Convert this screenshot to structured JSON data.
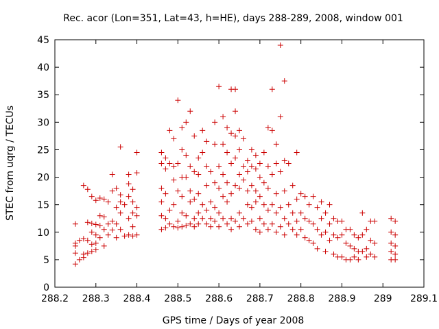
{
  "chart_data": {
    "type": "scatter",
    "title": "Rec. acor (Lon=351, Lat=43, h=HE), days 288-289, 2008, window 001",
    "xlabel": "GPS time / Days of year 2008",
    "ylabel": "STEC from uqrg / TECUs",
    "xlim": [
      288.2,
      289.1
    ],
    "ylim": [
      0,
      45
    ],
    "xticks": [
      "288.2",
      "288.3",
      "288.4",
      "288.5",
      "288.6",
      "288.7",
      "288.8",
      "288.9",
      "289",
      "289.1"
    ],
    "yticks": [
      "0",
      "5",
      "10",
      "15",
      "20",
      "25",
      "30",
      "35",
      "40",
      "45"
    ],
    "grid": false,
    "legend": "none",
    "marker": "+",
    "color": "#cc0000",
    "series": [
      {
        "points": [
          [
            288.25,
            11.5
          ],
          [
            288.25,
            8.0
          ],
          [
            288.25,
            7.5
          ],
          [
            288.25,
            6.2
          ],
          [
            288.25,
            4.2
          ],
          [
            288.26,
            8.5
          ],
          [
            288.26,
            5.0
          ],
          [
            288.27,
            8.8
          ],
          [
            288.27,
            6.0
          ],
          [
            288.27,
            5.4
          ],
          [
            288.28,
            11.8
          ],
          [
            288.28,
            8.5
          ],
          [
            288.28,
            6.2
          ],
          [
            288.29,
            11.6
          ],
          [
            288.29,
            10.0
          ],
          [
            288.29,
            7.8
          ],
          [
            288.29,
            6.5
          ],
          [
            288.3,
            11.4
          ],
          [
            288.3,
            9.5
          ],
          [
            288.3,
            8.0
          ],
          [
            288.3,
            6.8
          ],
          [
            288.31,
            13.0
          ],
          [
            288.31,
            11.2
          ],
          [
            288.31,
            9.0
          ],
          [
            288.32,
            12.8
          ],
          [
            288.32,
            10.5
          ],
          [
            288.32,
            7.5
          ],
          [
            288.33,
            11.5
          ],
          [
            288.33,
            9.5
          ],
          [
            288.34,
            12.0
          ],
          [
            288.34,
            10.4
          ],
          [
            288.35,
            14.5
          ],
          [
            288.35,
            11.5
          ],
          [
            288.35,
            9.0
          ],
          [
            288.36,
            13.5
          ],
          [
            288.36,
            10.5
          ],
          [
            288.37,
            9.3
          ],
          [
            288.38,
            12.5
          ],
          [
            288.38,
            9.5
          ],
          [
            288.39,
            13.5
          ],
          [
            288.39,
            11.0
          ],
          [
            288.39,
            9.3
          ],
          [
            288.4,
            13.0
          ],
          [
            288.4,
            9.5
          ],
          [
            288.27,
            18.5
          ],
          [
            288.28,
            17.8
          ],
          [
            288.29,
            16.5
          ],
          [
            288.3,
            15.8
          ],
          [
            288.31,
            16.2
          ],
          [
            288.32,
            16.0
          ],
          [
            288.33,
            15.5
          ],
          [
            288.34,
            17.5
          ],
          [
            288.35,
            18.0
          ],
          [
            288.36,
            16.8
          ],
          [
            288.36,
            15.5
          ],
          [
            288.37,
            15.0
          ],
          [
            288.38,
            16.5
          ],
          [
            288.38,
            18.8
          ],
          [
            288.39,
            17.8
          ],
          [
            288.39,
            15.5
          ],
          [
            288.4,
            14.5
          ],
          [
            288.36,
            25.5
          ],
          [
            288.34,
            20.5
          ],
          [
            288.38,
            20.5
          ],
          [
            288.4,
            20.8
          ],
          [
            288.4,
            24.5
          ],
          [
            288.46,
            24.5
          ],
          [
            288.46,
            22.5
          ],
          [
            288.46,
            18.0
          ],
          [
            288.46,
            15.5
          ],
          [
            288.46,
            13.0
          ],
          [
            288.46,
            10.5
          ],
          [
            288.47,
            23.5
          ],
          [
            288.47,
            21.5
          ],
          [
            288.47,
            17.0
          ],
          [
            288.47,
            12.5
          ],
          [
            288.47,
            10.8
          ],
          [
            288.48,
            28.5
          ],
          [
            288.48,
            22.5
          ],
          [
            288.48,
            14.0
          ],
          [
            288.48,
            11.5
          ],
          [
            288.49,
            27.0
          ],
          [
            288.49,
            22.0
          ],
          [
            288.49,
            19.5
          ],
          [
            288.49,
            15.0
          ],
          [
            288.49,
            11.0
          ],
          [
            288.5,
            34.0
          ],
          [
            288.5,
            22.5
          ],
          [
            288.5,
            17.5
          ],
          [
            288.5,
            12.0
          ],
          [
            288.5,
            10.8
          ],
          [
            288.51,
            29.0
          ],
          [
            288.51,
            25.0
          ],
          [
            288.51,
            20.0
          ],
          [
            288.51,
            16.5
          ],
          [
            288.51,
            13.5
          ],
          [
            288.51,
            11.0
          ],
          [
            288.52,
            30.0
          ],
          [
            288.52,
            24.0
          ],
          [
            288.52,
            20.0
          ],
          [
            288.52,
            13.0
          ],
          [
            288.52,
            11.2
          ],
          [
            288.53,
            32.0
          ],
          [
            288.53,
            22.0
          ],
          [
            288.53,
            17.5
          ],
          [
            288.53,
            15.5
          ],
          [
            288.53,
            11.5
          ],
          [
            288.54,
            27.5
          ],
          [
            288.54,
            21.0
          ],
          [
            288.54,
            16.0
          ],
          [
            288.54,
            12.5
          ],
          [
            288.54,
            11.0
          ],
          [
            288.55,
            23.5
          ],
          [
            288.55,
            20.5
          ],
          [
            288.55,
            17.0
          ],
          [
            288.55,
            13.5
          ],
          [
            288.55,
            11.5
          ],
          [
            288.56,
            28.5
          ],
          [
            288.56,
            24.5
          ],
          [
            288.56,
            15.0
          ],
          [
            288.56,
            12.5
          ],
          [
            288.57,
            26.5
          ],
          [
            288.57,
            22.0
          ],
          [
            288.57,
            18.5
          ],
          [
            288.57,
            14.0
          ],
          [
            288.57,
            11.5
          ],
          [
            288.58,
            21.0
          ],
          [
            288.58,
            15.5
          ],
          [
            288.58,
            12.5
          ],
          [
            288.58,
            11.0
          ],
          [
            288.59,
            30.0
          ],
          [
            288.59,
            26.0
          ],
          [
            288.59,
            19.0
          ],
          [
            288.59,
            14.5
          ],
          [
            288.59,
            12.0
          ],
          [
            288.6,
            36.5
          ],
          [
            288.6,
            22.0
          ],
          [
            288.6,
            18.0
          ],
          [
            288.6,
            13.5
          ],
          [
            288.6,
            11.0
          ],
          [
            288.61,
            31.0
          ],
          [
            288.61,
            26.0
          ],
          [
            288.61,
            20.5
          ],
          [
            288.61,
            16.5
          ],
          [
            288.61,
            12.5
          ],
          [
            288.62,
            29.0
          ],
          [
            288.62,
            24.5
          ],
          [
            288.62,
            19.0
          ],
          [
            288.62,
            15.5
          ],
          [
            288.62,
            11.5
          ],
          [
            288.63,
            36.0
          ],
          [
            288.63,
            28.0
          ],
          [
            288.63,
            22.5
          ],
          [
            288.63,
            17.0
          ],
          [
            288.63,
            12.5
          ],
          [
            288.63,
            10.5
          ],
          [
            288.64,
            36.0
          ],
          [
            288.64,
            32.0
          ],
          [
            288.64,
            27.5
          ],
          [
            288.64,
            23.5
          ],
          [
            288.64,
            18.5
          ],
          [
            288.64,
            12.0
          ],
          [
            288.65,
            28.5
          ],
          [
            288.65,
            25.0
          ],
          [
            288.65,
            20.5
          ],
          [
            288.65,
            18.0
          ],
          [
            288.65,
            13.5
          ],
          [
            288.65,
            11.0
          ],
          [
            288.66,
            27.0
          ],
          [
            288.66,
            22.0
          ],
          [
            288.66,
            19.5
          ],
          [
            288.66,
            12.5
          ],
          [
            288.67,
            23.0
          ],
          [
            288.67,
            21.0
          ],
          [
            288.67,
            17.5
          ],
          [
            288.67,
            15.0
          ],
          [
            288.67,
            11.5
          ],
          [
            288.68,
            25.0
          ],
          [
            288.68,
            22.0
          ],
          [
            288.68,
            18.5
          ],
          [
            288.68,
            14.5
          ],
          [
            288.68,
            12.0
          ],
          [
            288.69,
            24.0
          ],
          [
            288.69,
            21.5
          ],
          [
            288.69,
            17.5
          ],
          [
            288.69,
            15.5
          ],
          [
            288.69,
            10.5
          ],
          [
            288.7,
            22.5
          ],
          [
            288.7,
            20.0
          ],
          [
            288.7,
            16.5
          ],
          [
            288.7,
            12.5
          ],
          [
            288.7,
            10.0
          ],
          [
            288.71,
            24.5
          ],
          [
            288.71,
            19.0
          ],
          [
            288.71,
            15.0
          ],
          [
            288.71,
            11.5
          ],
          [
            288.72,
            29.0
          ],
          [
            288.72,
            22.0
          ],
          [
            288.72,
            18.0
          ],
          [
            288.72,
            14.0
          ],
          [
            288.72,
            10.5
          ],
          [
            288.73,
            36.0
          ],
          [
            288.73,
            28.5
          ],
          [
            288.73,
            20.5
          ],
          [
            288.73,
            15.0
          ],
          [
            288.73,
            11.5
          ],
          [
            288.74,
            26.0
          ],
          [
            288.74,
            22.5
          ],
          [
            288.74,
            17.0
          ],
          [
            288.74,
            13.5
          ],
          [
            288.74,
            10.0
          ],
          [
            288.75,
            44.0
          ],
          [
            288.75,
            31.0
          ],
          [
            288.75,
            21.0
          ],
          [
            288.75,
            14.5
          ],
          [
            288.75,
            11.0
          ],
          [
            288.76,
            37.5
          ],
          [
            288.76,
            23.0
          ],
          [
            288.76,
            17.5
          ],
          [
            288.76,
            12.5
          ],
          [
            288.76,
            9.5
          ],
          [
            288.77,
            22.5
          ],
          [
            288.77,
            15.0
          ],
          [
            288.77,
            11.5
          ],
          [
            288.78,
            18.5
          ],
          [
            288.78,
            13.5
          ],
          [
            288.78,
            10.5
          ],
          [
            288.79,
            24.5
          ],
          [
            288.79,
            16.0
          ],
          [
            288.79,
            12.0
          ],
          [
            288.79,
            9.5
          ],
          [
            288.8,
            17.0
          ],
          [
            288.8,
            13.5
          ],
          [
            288.8,
            10.5
          ],
          [
            288.81,
            16.5
          ],
          [
            288.81,
            12.5
          ],
          [
            288.81,
            9.0
          ],
          [
            288.82,
            15.0
          ],
          [
            288.82,
            12.0
          ],
          [
            288.82,
            8.5
          ],
          [
            288.83,
            16.5
          ],
          [
            288.83,
            11.5
          ],
          [
            288.83,
            8.0
          ],
          [
            288.84,
            14.5
          ],
          [
            288.84,
            10.5
          ],
          [
            288.84,
            7.0
          ],
          [
            288.85,
            15.5
          ],
          [
            288.85,
            12.5
          ],
          [
            288.85,
            9.5
          ],
          [
            288.86,
            13.5
          ],
          [
            288.86,
            10.0
          ],
          [
            288.86,
            6.5
          ],
          [
            288.87,
            15.0
          ],
          [
            288.87,
            11.5
          ],
          [
            288.87,
            8.5
          ],
          [
            288.88,
            12.5
          ],
          [
            288.88,
            9.5
          ],
          [
            288.88,
            6.0
          ],
          [
            288.89,
            12.0
          ],
          [
            288.89,
            9.0
          ],
          [
            288.89,
            5.5
          ],
          [
            288.9,
            12.0
          ],
          [
            288.9,
            9.5
          ],
          [
            288.9,
            5.5
          ],
          [
            288.91,
            10.5
          ],
          [
            288.91,
            8.0
          ],
          [
            288.91,
            5.0
          ],
          [
            288.92,
            10.5
          ],
          [
            288.92,
            7.5
          ],
          [
            288.92,
            5.0
          ],
          [
            288.93,
            9.5
          ],
          [
            288.93,
            7.0
          ],
          [
            288.93,
            5.5
          ],
          [
            288.94,
            9.0
          ],
          [
            288.94,
            6.5
          ],
          [
            288.94,
            5.0
          ],
          [
            288.95,
            13.5
          ],
          [
            288.95,
            9.5
          ],
          [
            288.95,
            6.5
          ],
          [
            288.96,
            10.5
          ],
          [
            288.96,
            7.0
          ],
          [
            288.96,
            5.5
          ],
          [
            288.97,
            12.0
          ],
          [
            288.97,
            8.5
          ],
          [
            288.97,
            6.0
          ],
          [
            288.98,
            12.0
          ],
          [
            288.98,
            8.0
          ],
          [
            288.98,
            5.5
          ],
          [
            289.02,
            12.5
          ],
          [
            289.02,
            10.0
          ],
          [
            289.02,
            8.0
          ],
          [
            289.02,
            6.5
          ],
          [
            289.02,
            5.0
          ],
          [
            289.03,
            12.0
          ],
          [
            289.03,
            9.5
          ],
          [
            289.03,
            7.5
          ],
          [
            289.03,
            6.0
          ],
          [
            289.03,
            5.0
          ]
        ]
      }
    ]
  }
}
